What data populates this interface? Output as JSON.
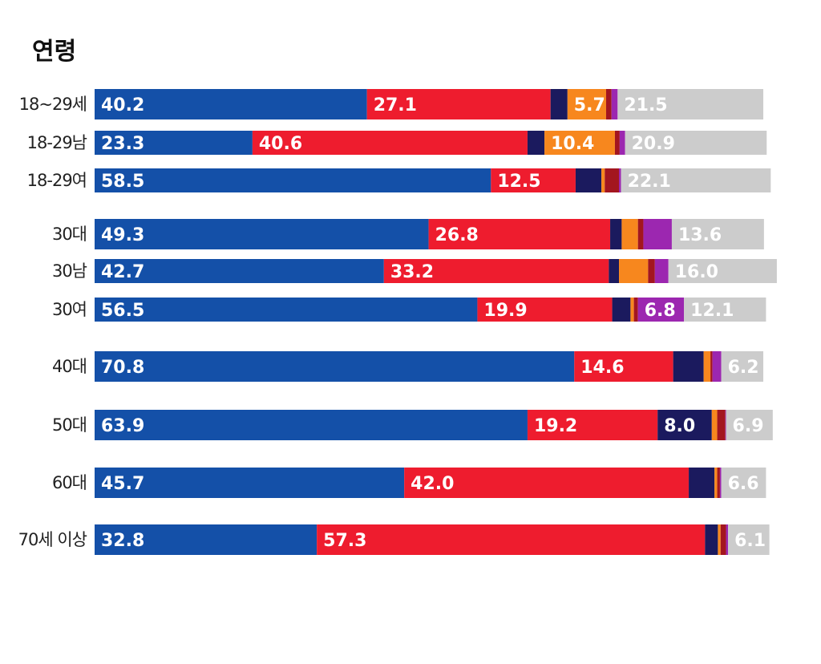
{
  "chart_data": {
    "type": "bar",
    "orientation": "horizontal",
    "stacked": true,
    "title": "연령",
    "categories": [
      "18~29세",
      "18-29남",
      "18-29여",
      "30대",
      "30남",
      "30여",
      "40대",
      "50대",
      "60대",
      "70세 이상"
    ],
    "series": [
      {
        "color": "#1450a8",
        "values": [
          40.2,
          23.3,
          58.5,
          49.3,
          42.7,
          56.5,
          70.8,
          63.9,
          45.7,
          32.8
        ],
        "labels": [
          "40.2",
          "23.3",
          "58.5",
          "49.3",
          "42.7",
          "56.5",
          "70.8",
          "63.9",
          "45.7",
          "32.8"
        ]
      },
      {
        "color": "#ee1c2e",
        "values": [
          27.1,
          40.6,
          12.5,
          26.8,
          33.2,
          19.9,
          14.6,
          19.2,
          42.0,
          57.3
        ],
        "labels": [
          "27.1",
          "40.6",
          "12.5",
          "26.8",
          "33.2",
          "19.9",
          "14.6",
          "19.2",
          "42.0",
          "57.3"
        ]
      },
      {
        "color": "#1b1a5e",
        "values": [
          2.5,
          2.5,
          3.8,
          1.7,
          1.5,
          2.7,
          4.5,
          8.0,
          3.8,
          1.9
        ],
        "labels": [
          "",
          "",
          "",
          "",
          "",
          "",
          "",
          "8.0",
          "",
          ""
        ]
      },
      {
        "color": "#f7871e",
        "values": [
          5.7,
          10.4,
          0.5,
          2.4,
          4.3,
          0.5,
          1.0,
          0.8,
          0.4,
          0.4
        ],
        "labels": [
          "5.7",
          "10.4",
          "",
          "",
          "",
          "",
          "",
          "",
          "",
          ""
        ]
      },
      {
        "color": "#a3161f",
        "values": [
          0.8,
          0.7,
          2.1,
          0.8,
          1.0,
          0.6,
          0.3,
          1.2,
          0.4,
          0.8
        ],
        "labels": [
          "",
          "",
          "",
          "",
          "",
          "",
          "",
          "",
          "",
          ""
        ]
      },
      {
        "color": "#9c27b0",
        "values": [
          0.9,
          0.8,
          0.3,
          4.2,
          2.0,
          6.8,
          1.3,
          0.1,
          0.2,
          0.3
        ],
        "labels": [
          "",
          "",
          "",
          "",
          "",
          "6.8",
          "",
          "",
          "",
          ""
        ]
      },
      {
        "color": "#cccccc",
        "values": [
          21.5,
          20.9,
          22.1,
          13.6,
          16.0,
          12.1,
          6.2,
          6.9,
          6.6,
          6.1
        ],
        "labels": [
          "21.5",
          "20.9",
          "22.1",
          "13.6",
          "16.0",
          "12.1",
          "6.2",
          "6.9",
          "6.6",
          "6.1"
        ]
      }
    ],
    "xlim": [
      0,
      100
    ],
    "legend": "none",
    "grid": false
  }
}
